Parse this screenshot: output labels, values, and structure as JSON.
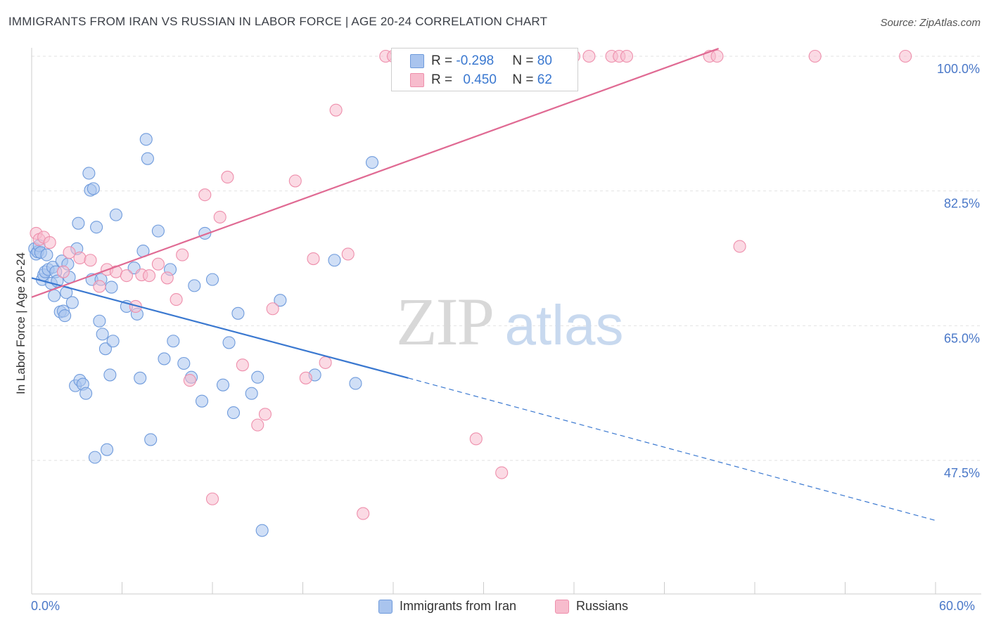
{
  "header": {
    "title": "IMMIGRANTS FROM IRAN VS RUSSIAN IN LABOR FORCE | AGE 20-24 CORRELATION CHART",
    "source": "Source: ZipAtlas.com"
  },
  "watermark": {
    "zip": "ZIP",
    "atlas": "atlas"
  },
  "colors": {
    "blue_fill": "#a9c4ee",
    "blue_stroke": "#6f9bdc",
    "blue_line": "#3a78d0",
    "pink_fill": "#f7bccd",
    "pink_stroke": "#ee8fac",
    "pink_line": "#e06a93",
    "tick_text": "#4a78c8",
    "grid": "#e2e2e2"
  },
  "legend_top": {
    "rows": [
      {
        "r_label": "R = ",
        "r_value": "-0.298",
        "n_label": "N = ",
        "n_value": "80"
      },
      {
        "r_label": "R = ",
        "r_value": "0.450",
        "n_label": "N = ",
        "n_value": "62"
      }
    ]
  },
  "legend_bottom": {
    "items": [
      {
        "label": "Immigrants from Iran"
      },
      {
        "label": "Russians"
      }
    ]
  },
  "chart_data": {
    "type": "scatter",
    "title": "IMMIGRANTS FROM IRAN VS RUSSIAN IN LABOR FORCE | AGE 20-24 CORRELATION CHART",
    "xlabel": "",
    "ylabel": "In Labor Force | Age 20-24",
    "xlim": [
      0,
      60
    ],
    "ylim": [
      34,
      101.5
    ],
    "x_tick_labels": [
      "0.0%",
      "60.0%"
    ],
    "y_ticks": [
      47.5,
      65.0,
      82.5,
      100.0
    ],
    "y_tick_labels": [
      "47.5%",
      "65.0%",
      "82.5%",
      "100.0%"
    ],
    "grid": true,
    "legend_position": "top-center",
    "series": [
      {
        "name": "Immigrants from Iran",
        "r": -0.298,
        "n": 80,
        "trend": {
          "x0": 0,
          "y0": 71.2,
          "x1": 25,
          "y1": 58.2,
          "dash_to_x": 60,
          "dash_to_y": 39.7
        },
        "points": [
          [
            0.2,
            75.0
          ],
          [
            0.3,
            74.3
          ],
          [
            0.4,
            74.6
          ],
          [
            0.5,
            75.4
          ],
          [
            0.6,
            74.5
          ],
          [
            0.7,
            71.0
          ],
          [
            0.8,
            71.6
          ],
          [
            0.9,
            72.0
          ],
          [
            1.0,
            74.2
          ],
          [
            1.1,
            72.3
          ],
          [
            1.3,
            70.5
          ],
          [
            1.4,
            72.6
          ],
          [
            1.5,
            68.9
          ],
          [
            1.6,
            72.0
          ],
          [
            1.7,
            70.8
          ],
          [
            1.9,
            66.8
          ],
          [
            2.0,
            73.4
          ],
          [
            2.1,
            66.9
          ],
          [
            2.2,
            66.3
          ],
          [
            2.3,
            69.3
          ],
          [
            2.4,
            73.0
          ],
          [
            2.5,
            71.3
          ],
          [
            2.7,
            68.0
          ],
          [
            2.9,
            57.2
          ],
          [
            3.0,
            75.0
          ],
          [
            3.1,
            78.3
          ],
          [
            3.2,
            57.9
          ],
          [
            3.4,
            57.4
          ],
          [
            3.6,
            56.2
          ],
          [
            3.8,
            84.8
          ],
          [
            3.9,
            82.6
          ],
          [
            4.0,
            71.0
          ],
          [
            4.1,
            82.8
          ],
          [
            4.2,
            47.9
          ],
          [
            4.3,
            77.8
          ],
          [
            4.5,
            65.6
          ],
          [
            4.6,
            71.0
          ],
          [
            4.7,
            63.9
          ],
          [
            4.9,
            62.0
          ],
          [
            5.0,
            48.9
          ],
          [
            5.2,
            58.6
          ],
          [
            5.3,
            70.0
          ],
          [
            5.4,
            63.0
          ],
          [
            5.6,
            79.4
          ],
          [
            6.3,
            67.5
          ],
          [
            6.8,
            72.5
          ],
          [
            7.0,
            66.5
          ],
          [
            7.2,
            58.2
          ],
          [
            7.4,
            74.7
          ],
          [
            7.6,
            89.2
          ],
          [
            7.7,
            86.7
          ],
          [
            7.9,
            50.2
          ],
          [
            8.4,
            77.3
          ],
          [
            8.8,
            60.7
          ],
          [
            9.2,
            72.3
          ],
          [
            9.4,
            63.0
          ],
          [
            10.1,
            60.1
          ],
          [
            10.6,
            58.3
          ],
          [
            10.8,
            70.2
          ],
          [
            11.3,
            55.2
          ],
          [
            11.5,
            77.0
          ],
          [
            12.0,
            71.0
          ],
          [
            12.7,
            57.3
          ],
          [
            13.1,
            62.8
          ],
          [
            13.4,
            53.7
          ],
          [
            13.7,
            66.6
          ],
          [
            14.6,
            56.2
          ],
          [
            15.0,
            58.3
          ],
          [
            15.3,
            38.4
          ],
          [
            16.5,
            68.3
          ],
          [
            18.8,
            58.6
          ],
          [
            20.1,
            73.5
          ],
          [
            21.5,
            57.5
          ],
          [
            22.6,
            86.2
          ]
        ]
      },
      {
        "name": "Russians",
        "r": 0.45,
        "n": 62,
        "trend": {
          "x0": 0,
          "y0": 68.7,
          "x1": 60,
          "y1": 111.2
        },
        "points": [
          [
            0.3,
            77.0
          ],
          [
            0.5,
            76.2
          ],
          [
            0.8,
            76.5
          ],
          [
            1.2,
            75.8
          ],
          [
            2.1,
            72.0
          ],
          [
            2.5,
            74.5
          ],
          [
            3.2,
            73.8
          ],
          [
            3.9,
            73.5
          ],
          [
            4.5,
            70.1
          ],
          [
            5.0,
            72.3
          ],
          [
            5.6,
            72.0
          ],
          [
            6.3,
            71.5
          ],
          [
            6.9,
            67.5
          ],
          [
            7.3,
            71.6
          ],
          [
            7.8,
            71.5
          ],
          [
            8.4,
            73.0
          ],
          [
            9.0,
            71.2
          ],
          [
            9.6,
            68.4
          ],
          [
            10.0,
            74.2
          ],
          [
            10.5,
            57.9
          ],
          [
            11.5,
            82.0
          ],
          [
            12.0,
            42.5
          ],
          [
            12.5,
            79.1
          ],
          [
            13.0,
            84.3
          ],
          [
            14.0,
            59.9
          ],
          [
            15.0,
            52.1
          ],
          [
            15.5,
            53.5
          ],
          [
            16.0,
            67.2
          ],
          [
            17.5,
            83.8
          ],
          [
            18.2,
            58.2
          ],
          [
            18.7,
            73.7
          ],
          [
            19.5,
            60.2
          ],
          [
            20.2,
            93.0
          ],
          [
            21.0,
            74.3
          ],
          [
            22.0,
            40.6
          ],
          [
            23.5,
            100.0
          ],
          [
            24.0,
            100.0
          ],
          [
            25.0,
            100.0
          ],
          [
            26.0,
            100.0
          ],
          [
            27.0,
            100.0
          ],
          [
            29.5,
            50.3
          ],
          [
            31.2,
            45.9
          ],
          [
            36.0,
            100.0
          ],
          [
            37.0,
            100.0
          ],
          [
            38.5,
            100.0
          ],
          [
            39.0,
            100.0
          ],
          [
            39.5,
            100.0
          ],
          [
            45.0,
            100.0
          ],
          [
            45.5,
            100.0
          ],
          [
            47.0,
            75.3
          ],
          [
            52.0,
            100.0
          ],
          [
            58.0,
            100.0
          ]
        ]
      }
    ]
  }
}
